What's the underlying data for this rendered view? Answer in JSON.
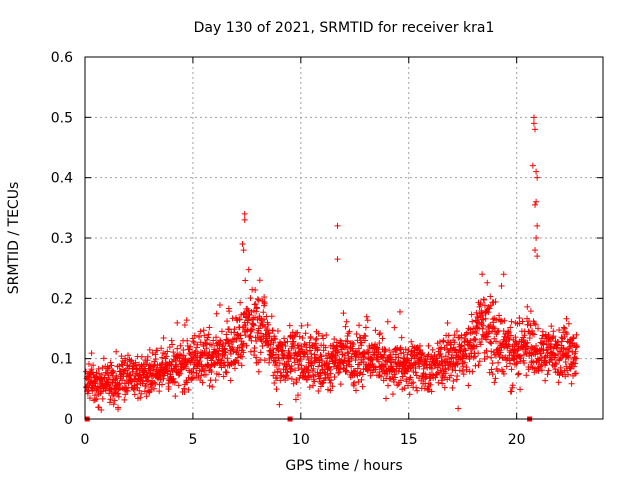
{
  "chart_data": {
    "type": "scatter",
    "title": "Day 130 of 2021, SRMTID for receiver kra1",
    "xlabel": "GPS time / hours",
    "ylabel": "SRMTID / TECUs",
    "xlim": [
      0,
      24
    ],
    "ylim": [
      0,
      0.6
    ],
    "x_ticks": [
      0,
      5,
      10,
      15,
      20
    ],
    "x_tick_labels": [
      "0",
      "5",
      "10",
      "15",
      "20"
    ],
    "y_ticks": [
      0,
      0.1,
      0.2,
      0.3,
      0.4,
      0.5,
      0.6
    ],
    "y_tick_labels": [
      "0",
      "0.1",
      "0.2",
      "0.3",
      "0.4",
      "0.5",
      "0.6"
    ],
    "grid": true,
    "marker": "+",
    "series": [
      {
        "name": "SRMTID",
        "color": "#ff0000",
        "baseline_profile": {
          "description": "Dense scatter of ~2000 points; estimated local mean and spread by hour",
          "hours": [
            0,
            1,
            2,
            3,
            4,
            5,
            6,
            7,
            7.5,
            8,
            9,
            10,
            11,
            12,
            13,
            14,
            15,
            16,
            17,
            18,
            18.5,
            19,
            19.5,
            20,
            20.7,
            21,
            22,
            22.8
          ],
          "mean": [
            0.06,
            0.055,
            0.07,
            0.075,
            0.08,
            0.095,
            0.105,
            0.12,
            0.16,
            0.15,
            0.1,
            0.1,
            0.095,
            0.1,
            0.1,
            0.09,
            0.09,
            0.085,
            0.1,
            0.13,
            0.15,
            0.13,
            0.12,
            0.11,
            0.12,
            0.11,
            0.11,
            0.1
          ],
          "spread": [
            0.03,
            0.03,
            0.03,
            0.03,
            0.035,
            0.04,
            0.04,
            0.05,
            0.06,
            0.06,
            0.04,
            0.045,
            0.045,
            0.04,
            0.04,
            0.035,
            0.035,
            0.035,
            0.04,
            0.05,
            0.05,
            0.05,
            0.05,
            0.045,
            0.05,
            0.04,
            0.04,
            0.04
          ]
        },
        "notable_points": [
          {
            "x": 7.4,
            "y": 0.34
          },
          {
            "x": 7.4,
            "y": 0.33
          },
          {
            "x": 7.3,
            "y": 0.29
          },
          {
            "x": 7.35,
            "y": 0.28
          },
          {
            "x": 11.7,
            "y": 0.32
          },
          {
            "x": 11.7,
            "y": 0.265
          },
          {
            "x": 20.8,
            "y": 0.5
          },
          {
            "x": 20.8,
            "y": 0.49
          },
          {
            "x": 20.85,
            "y": 0.48
          },
          {
            "x": 20.9,
            "y": 0.41
          },
          {
            "x": 20.75,
            "y": 0.42
          },
          {
            "x": 20.95,
            "y": 0.4
          },
          {
            "x": 20.9,
            "y": 0.36
          },
          {
            "x": 20.85,
            "y": 0.355
          },
          {
            "x": 20.95,
            "y": 0.32
          },
          {
            "x": 20.9,
            "y": 0.3
          },
          {
            "x": 20.85,
            "y": 0.28
          },
          {
            "x": 20.95,
            "y": 0.27
          },
          {
            "x": 18.4,
            "y": 0.24
          },
          {
            "x": 19.4,
            "y": 0.24
          },
          {
            "x": 8.1,
            "y": 0.23
          }
        ],
        "x_range_hours": [
          0.05,
          22.8
        ]
      }
    ],
    "gap_markers": {
      "color": "#ff0000",
      "x": [
        0.1,
        9.5,
        20.6
      ],
      "y": 0
    }
  }
}
